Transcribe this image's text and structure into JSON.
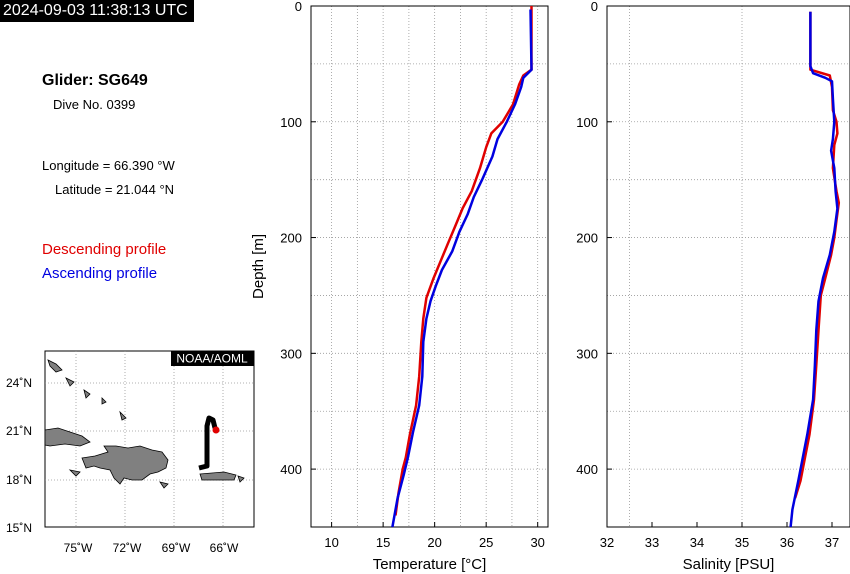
{
  "header": {
    "timestamp": "2024-09-03 11:38:13 UTC",
    "glider": "Glider: SG649",
    "dive": "Dive No. 0399",
    "longitude": "Longitude = 66.390 °W",
    "latitude": "Latitude = 21.044 °N",
    "descending_label": "Descending profile",
    "ascending_label": "Ascending profile"
  },
  "colors": {
    "descending": "#e00000",
    "ascending": "#0000e0"
  },
  "map": {
    "credit": "NOAA/AOML",
    "lat_ticks": [
      "24˚N",
      "21˚N",
      "18˚N",
      "15˚N"
    ],
    "lon_ticks": [
      "75˚W",
      "72˚W",
      "69˚W",
      "66˚W"
    ]
  },
  "chart_data": [
    {
      "type": "line",
      "xlabel": "Temperature [°C]",
      "ylabel": "Depth [m]",
      "xlim": [
        8,
        31
      ],
      "ylim": [
        450,
        0
      ],
      "xticks": [
        10,
        15,
        20,
        25,
        30
      ],
      "yticks": [
        0,
        100,
        200,
        300,
        400
      ],
      "grid": true,
      "series": [
        {
          "name": "Descending profile",
          "points": [
            [
              29.4,
              0
            ],
            [
              29.4,
              55
            ],
            [
              28.6,
              60
            ],
            [
              28.2,
              68
            ],
            [
              27.6,
              85
            ],
            [
              26.6,
              100
            ],
            [
              25.5,
              110
            ],
            [
              25.0,
              122
            ],
            [
              24.4,
              140
            ],
            [
              23.6,
              160
            ],
            [
              22.7,
              175
            ],
            [
              22.0,
              190
            ],
            [
              21.3,
              205
            ],
            [
              20.6,
              220
            ],
            [
              19.9,
              235
            ],
            [
              19.2,
              252
            ],
            [
              18.9,
              270
            ],
            [
              18.7,
              290
            ],
            [
              18.5,
              320
            ],
            [
              18.2,
              345
            ],
            [
              17.6,
              370
            ],
            [
              17.2,
              390
            ],
            [
              16.9,
              400
            ],
            [
              16.5,
              420
            ],
            [
              16.2,
              440
            ]
          ]
        },
        {
          "name": "Ascending profile",
          "points": [
            [
              29.3,
              3
            ],
            [
              29.4,
              55
            ],
            [
              28.6,
              62
            ],
            [
              28.4,
              70
            ],
            [
              27.8,
              85
            ],
            [
              27.0,
              100
            ],
            [
              26.1,
              115
            ],
            [
              25.6,
              130
            ],
            [
              24.6,
              150
            ],
            [
              23.8,
              165
            ],
            [
              23.2,
              180
            ],
            [
              22.4,
              195
            ],
            [
              21.7,
              212
            ],
            [
              20.7,
              228
            ],
            [
              20.1,
              242
            ],
            [
              19.6,
              255
            ],
            [
              19.2,
              270
            ],
            [
              18.9,
              290
            ],
            [
              18.8,
              320
            ],
            [
              18.5,
              345
            ],
            [
              17.9,
              368
            ],
            [
              17.4,
              390
            ],
            [
              17.0,
              405
            ],
            [
              16.4,
              425
            ],
            [
              15.9,
              450
            ]
          ]
        }
      ]
    },
    {
      "type": "line",
      "xlabel": "Salinity [PSU]",
      "ylabel": "",
      "xlim": [
        32,
        37.4
      ],
      "ylim": [
        450,
        0
      ],
      "xticks": [
        32,
        33,
        34,
        35,
        36,
        37
      ],
      "yticks": [
        0,
        100,
        200,
        300,
        400
      ],
      "grid": true,
      "series": [
        {
          "name": "Descending profile",
          "points": [
            [
              36.52,
              5
            ],
            [
              36.52,
              55
            ],
            [
              36.95,
              60
            ],
            [
              37.0,
              70
            ],
            [
              37.02,
              90
            ],
            [
              37.1,
              100
            ],
            [
              37.12,
              110
            ],
            [
              37.05,
              120
            ],
            [
              37.02,
              140
            ],
            [
              37.1,
              160
            ],
            [
              37.15,
              170
            ],
            [
              37.1,
              185
            ],
            [
              37.05,
              200
            ],
            [
              36.98,
              215
            ],
            [
              36.85,
              235
            ],
            [
              36.75,
              250
            ],
            [
              36.7,
              280
            ],
            [
              36.65,
              310
            ],
            [
              36.6,
              340
            ],
            [
              36.5,
              370
            ],
            [
              36.4,
              390
            ],
            [
              36.3,
              410
            ],
            [
              36.18,
              425
            ]
          ]
        },
        {
          "name": "Ascending profile",
          "points": [
            [
              36.52,
              5
            ],
            [
              36.52,
              52
            ],
            [
              36.58,
              58
            ],
            [
              36.85,
              62
            ],
            [
              37.0,
              65
            ],
            [
              37.02,
              80
            ],
            [
              37.05,
              100
            ],
            [
              37.02,
              115
            ],
            [
              36.98,
              125
            ],
            [
              37.05,
              140
            ],
            [
              37.08,
              160
            ],
            [
              37.12,
              175
            ],
            [
              37.05,
              195
            ],
            [
              36.95,
              215
            ],
            [
              36.8,
              235
            ],
            [
              36.7,
              255
            ],
            [
              36.65,
              280
            ],
            [
              36.62,
              310
            ],
            [
              36.58,
              340
            ],
            [
              36.45,
              370
            ],
            [
              36.35,
              390
            ],
            [
              36.25,
              410
            ],
            [
              36.12,
              435
            ],
            [
              36.08,
              450
            ]
          ]
        }
      ]
    }
  ]
}
